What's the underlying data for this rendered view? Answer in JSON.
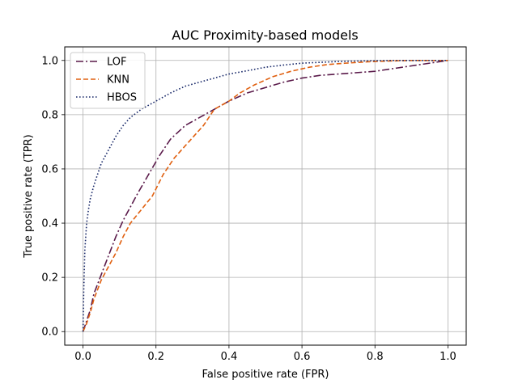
{
  "chart_data": {
    "type": "line",
    "title": "AUC Proximity-based models",
    "xlabel": "False positive rate (FPR)",
    "ylabel": "True positive rate (TPR)",
    "xlim": [
      -0.05,
      1.05
    ],
    "ylim": [
      -0.05,
      1.05
    ],
    "grid": true,
    "legend_position": "top-left",
    "xticks": [
      0.0,
      0.2,
      0.4,
      0.6,
      0.8,
      1.0
    ],
    "yticks": [
      0.0,
      0.2,
      0.4,
      0.6,
      0.8,
      1.0
    ],
    "xtick_labels": [
      "0.0",
      "0.2",
      "0.4",
      "0.6",
      "0.8",
      "1.0"
    ],
    "ytick_labels": [
      "0.0",
      "0.2",
      "0.4",
      "0.6",
      "0.8",
      "1.0"
    ],
    "series": [
      {
        "name": "LOF",
        "color": "#5a1a4a",
        "dash": "dashdot",
        "x": [
          0.0,
          0.01,
          0.02,
          0.03,
          0.05,
          0.07,
          0.09,
          0.11,
          0.13,
          0.15,
          0.18,
          0.21,
          0.24,
          0.28,
          0.32,
          0.36,
          0.4,
          0.45,
          0.5,
          0.55,
          0.6,
          0.65,
          0.7,
          0.75,
          0.8,
          0.85,
          0.9,
          0.95,
          1.0
        ],
        "y": [
          0.0,
          0.04,
          0.08,
          0.14,
          0.21,
          0.28,
          0.35,
          0.41,
          0.46,
          0.51,
          0.58,
          0.65,
          0.71,
          0.76,
          0.79,
          0.82,
          0.85,
          0.88,
          0.9,
          0.92,
          0.935,
          0.945,
          0.95,
          0.955,
          0.96,
          0.97,
          0.98,
          0.99,
          1.0
        ]
      },
      {
        "name": "KNN",
        "color": "#e06010",
        "dash": "dashed",
        "x": [
          0.0,
          0.01,
          0.02,
          0.03,
          0.05,
          0.07,
          0.09,
          0.11,
          0.13,
          0.16,
          0.19,
          0.22,
          0.25,
          0.29,
          0.33,
          0.36,
          0.4,
          0.43,
          0.47,
          0.52,
          0.57,
          0.62,
          0.67,
          0.72,
          0.78,
          0.84,
          0.9,
          0.95,
          1.0
        ],
        "y": [
          0.0,
          0.03,
          0.07,
          0.12,
          0.19,
          0.24,
          0.29,
          0.35,
          0.4,
          0.45,
          0.5,
          0.58,
          0.64,
          0.7,
          0.76,
          0.82,
          0.85,
          0.88,
          0.91,
          0.94,
          0.96,
          0.975,
          0.985,
          0.99,
          0.995,
          0.998,
          1.0,
          1.0,
          1.0
        ]
      },
      {
        "name": "HBOS",
        "color": "#1a2a6a",
        "dash": "dotted",
        "x": [
          0.0,
          0.002,
          0.005,
          0.01,
          0.015,
          0.02,
          0.03,
          0.04,
          0.05,
          0.07,
          0.09,
          0.11,
          0.13,
          0.16,
          0.2,
          0.24,
          0.28,
          0.32,
          0.36,
          0.4,
          0.45,
          0.5,
          0.55,
          0.6,
          0.65,
          0.7,
          0.75,
          0.8,
          0.85,
          0.9,
          1.0
        ],
        "y": [
          0.0,
          0.15,
          0.3,
          0.4,
          0.45,
          0.49,
          0.54,
          0.58,
          0.62,
          0.67,
          0.72,
          0.76,
          0.79,
          0.82,
          0.85,
          0.88,
          0.905,
          0.92,
          0.935,
          0.95,
          0.962,
          0.975,
          0.983,
          0.99,
          0.993,
          0.996,
          0.998,
          0.999,
          1.0,
          1.0,
          1.0
        ]
      }
    ]
  }
}
